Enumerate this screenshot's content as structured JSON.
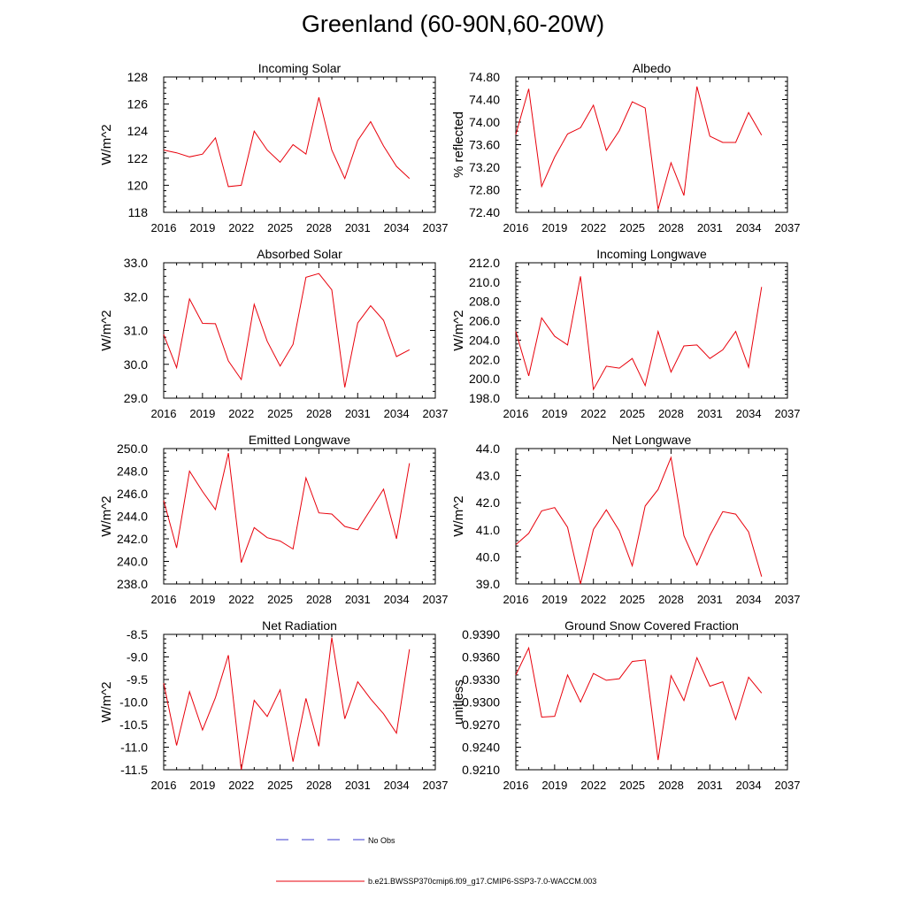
{
  "page": {
    "title": "Greenland (60-90N,60-20W)"
  },
  "colors": {
    "model_line": "#e8000b",
    "obs_line": "#3b3bcf",
    "axis": "#000000"
  },
  "legend": {
    "obs_label": "No Obs",
    "model_label": "b.e21.BWSSP370cmip6.f09_g17.CMIP6-SSP3-7.0-WACCM.003"
  },
  "chart_data": [
    {
      "type": "line",
      "title": "Incoming Solar",
      "ylabel": "W/m^2",
      "xlim": [
        2016,
        2037
      ],
      "ylim": [
        118,
        128
      ],
      "x_ticks": [
        2016,
        2019,
        2022,
        2025,
        2028,
        2031,
        2034,
        2037
      ],
      "y_ticks": [
        "118",
        "120",
        "122",
        "124",
        "126",
        "128"
      ],
      "series": [
        {
          "x": [
            2016,
            2017,
            2018,
            2019,
            2020,
            2021,
            2022,
            2023,
            2024,
            2025,
            2026,
            2027,
            2028,
            2029,
            2030,
            2031,
            2032,
            2033,
            2034,
            2035
          ],
          "values": [
            122.6,
            122.4,
            122.1,
            122.3,
            123.5,
            119.9,
            120.0,
            124.0,
            122.6,
            121.7,
            123.0,
            122.3,
            126.5,
            122.6,
            120.5,
            123.3,
            124.7,
            122.9,
            121.4,
            120.5
          ]
        }
      ]
    },
    {
      "type": "line",
      "title": "Albedo",
      "ylabel": "% reflected",
      "xlim": [
        2016,
        2037
      ],
      "ylim": [
        72.4,
        74.8
      ],
      "x_ticks": [
        2016,
        2019,
        2022,
        2025,
        2028,
        2031,
        2034,
        2037
      ],
      "y_ticks": [
        "72.40",
        "72.80",
        "73.20",
        "73.60",
        "74.00",
        "74.40",
        "74.80"
      ],
      "series": [
        {
          "x": [
            2016,
            2017,
            2018,
            2019,
            2020,
            2021,
            2022,
            2023,
            2024,
            2025,
            2026,
            2027,
            2028,
            2029,
            2030,
            2031,
            2032,
            2033,
            2034,
            2035
          ],
          "values": [
            73.78,
            74.59,
            72.86,
            73.38,
            73.79,
            73.9,
            74.3,
            73.5,
            73.85,
            74.36,
            74.25,
            72.45,
            73.28,
            72.7,
            74.63,
            73.75,
            73.64,
            73.64,
            74.17,
            73.77
          ]
        }
      ]
    },
    {
      "type": "line",
      "title": "Absorbed Solar",
      "ylabel": "W/m^2",
      "xlim": [
        2016,
        2037
      ],
      "ylim": [
        29.0,
        33.0
      ],
      "x_ticks": [
        2016,
        2019,
        2022,
        2025,
        2028,
        2031,
        2034,
        2037
      ],
      "y_ticks": [
        "29.0",
        "30.0",
        "31.0",
        "32.0",
        "33.0"
      ],
      "series": [
        {
          "x": [
            2016,
            2017,
            2018,
            2019,
            2020,
            2021,
            2022,
            2023,
            2024,
            2025,
            2026,
            2027,
            2028,
            2029,
            2030,
            2031,
            2032,
            2033,
            2034,
            2035
          ],
          "values": [
            30.88,
            29.9,
            31.93,
            31.21,
            31.2,
            30.1,
            29.55,
            31.77,
            30.68,
            29.95,
            30.59,
            32.57,
            32.68,
            32.2,
            29.32,
            31.22,
            31.73,
            31.3,
            30.23,
            30.43
          ]
        }
      ]
    },
    {
      "type": "line",
      "title": "Incoming Longwave",
      "ylabel": "W/m^2",
      "xlim": [
        2016,
        2037
      ],
      "ylim": [
        198.0,
        212.0
      ],
      "x_ticks": [
        2016,
        2019,
        2022,
        2025,
        2028,
        2031,
        2034,
        2037
      ],
      "y_ticks": [
        "198.0",
        "200.0",
        "202.0",
        "204.0",
        "206.0",
        "208.0",
        "210.0",
        "212.0"
      ],
      "series": [
        {
          "x": [
            2016,
            2017,
            2018,
            2019,
            2020,
            2021,
            2022,
            2023,
            2024,
            2025,
            2026,
            2027,
            2028,
            2029,
            2030,
            2031,
            2032,
            2033,
            2034,
            2035
          ],
          "values": [
            204.9,
            200.3,
            206.3,
            204.4,
            203.5,
            210.6,
            198.9,
            201.3,
            201.1,
            202.1,
            199.3,
            204.9,
            200.7,
            203.4,
            203.5,
            202.1,
            203.0,
            204.9,
            201.2,
            209.5
          ]
        }
      ]
    },
    {
      "type": "line",
      "title": "Emitted Longwave",
      "ylabel": "W/m^2",
      "xlim": [
        2016,
        2037
      ],
      "ylim": [
        238.0,
        250.0
      ],
      "x_ticks": [
        2016,
        2019,
        2022,
        2025,
        2028,
        2031,
        2034,
        2037
      ],
      "y_ticks": [
        "238.0",
        "240.0",
        "242.0",
        "244.0",
        "246.0",
        "248.0",
        "250.0"
      ],
      "series": [
        {
          "x": [
            2016,
            2017,
            2018,
            2019,
            2020,
            2021,
            2022,
            2023,
            2024,
            2025,
            2026,
            2027,
            2028,
            2029,
            2030,
            2031,
            2032,
            2033,
            2034,
            2035
          ],
          "values": [
            245.4,
            241.2,
            248.0,
            246.2,
            244.6,
            249.6,
            239.9,
            243.0,
            242.1,
            241.8,
            241.1,
            247.4,
            244.3,
            244.2,
            243.1,
            242.8,
            244.6,
            246.4,
            242.0,
            248.7
          ]
        }
      ]
    },
    {
      "type": "line",
      "title": "Net Longwave",
      "ylabel": "W/m^2",
      "xlim": [
        2016,
        2037
      ],
      "ylim": [
        39.0,
        44.0
      ],
      "x_ticks": [
        2016,
        2019,
        2022,
        2025,
        2028,
        2031,
        2034,
        2037
      ],
      "y_ticks": [
        "39.0",
        "40.0",
        "41.0",
        "42.0",
        "43.0",
        "44.0"
      ],
      "series": [
        {
          "x": [
            2016,
            2017,
            2018,
            2019,
            2020,
            2021,
            2022,
            2023,
            2024,
            2025,
            2026,
            2027,
            2028,
            2029,
            2030,
            2031,
            2032,
            2033,
            2034,
            2035
          ],
          "values": [
            40.45,
            40.87,
            41.7,
            41.82,
            41.09,
            39.0,
            41.01,
            41.74,
            40.96,
            39.67,
            41.88,
            42.49,
            43.67,
            40.78,
            39.7,
            40.79,
            41.67,
            41.58,
            40.92,
            39.27
          ]
        }
      ]
    },
    {
      "type": "line",
      "title": "Net Radiation",
      "ylabel": "W/m^2",
      "xlim": [
        2016,
        2037
      ],
      "ylim": [
        -11.5,
        -8.5
      ],
      "x_ticks": [
        2016,
        2019,
        2022,
        2025,
        2028,
        2031,
        2034,
        2037
      ],
      "y_ticks": [
        "-11.5",
        "-11.0",
        "-10.5",
        "-10.0",
        "-9.5",
        "-9.0",
        "-8.5"
      ],
      "series": [
        {
          "x": [
            2016,
            2017,
            2018,
            2019,
            2020,
            2021,
            2022,
            2023,
            2024,
            2025,
            2026,
            2027,
            2028,
            2029,
            2030,
            2031,
            2032,
            2033,
            2034,
            2035
          ],
          "values": [
            -9.58,
            -10.96,
            -9.77,
            -10.62,
            -9.9,
            -8.96,
            -11.5,
            -9.96,
            -10.32,
            -9.73,
            -11.32,
            -9.92,
            -10.98,
            -8.57,
            -10.37,
            -9.55,
            -9.93,
            -10.26,
            -10.69,
            -8.83
          ]
        }
      ]
    },
    {
      "type": "line",
      "title": "Ground Snow Covered Fraction",
      "ylabel": "unitless",
      "xlim": [
        2016,
        2037
      ],
      "ylim": [
        0.921,
        0.939
      ],
      "x_ticks": [
        2016,
        2019,
        2022,
        2025,
        2028,
        2031,
        2034,
        2037
      ],
      "y_ticks": [
        "0.9210",
        "0.9240",
        "0.9270",
        "0.9300",
        "0.9330",
        "0.9360",
        "0.9390"
      ],
      "series": [
        {
          "x": [
            2016,
            2017,
            2018,
            2019,
            2020,
            2021,
            2022,
            2023,
            2024,
            2025,
            2026,
            2027,
            2028,
            2029,
            2030,
            2031,
            2032,
            2033,
            2034,
            2035
          ],
          "values": [
            0.9336,
            0.9372,
            0.928,
            0.9281,
            0.9336,
            0.93,
            0.9338,
            0.9329,
            0.9331,
            0.9354,
            0.9356,
            0.9223,
            0.9335,
            0.9302,
            0.9359,
            0.9321,
            0.9327,
            0.9277,
            0.9333,
            0.9312
          ]
        }
      ]
    }
  ]
}
